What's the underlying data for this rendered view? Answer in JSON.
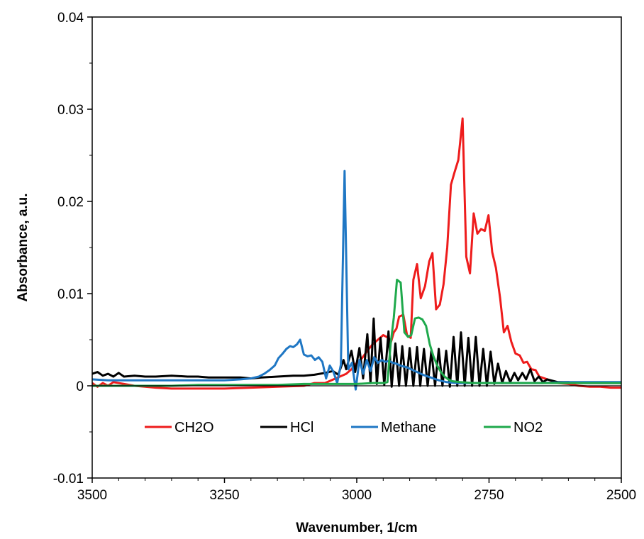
{
  "chart_data": {
    "type": "line",
    "title": "",
    "xlabel": "Wavenumber, 1/cm",
    "ylabel": "Absorbance, a.u.",
    "xlim": [
      3500,
      2500
    ],
    "ylim": [
      -0.01,
      0.04
    ],
    "x_reversed": true,
    "grid": false,
    "legend_position": "inside-lower-center",
    "x_ticks": [
      3500,
      3250,
      3000,
      2750,
      2500
    ],
    "x_tick_labels": [
      "3500",
      "3250",
      "3000",
      "2750",
      "2500"
    ],
    "y_ticks": [
      -0.01,
      0,
      0.01,
      0.02,
      0.03,
      0.04
    ],
    "y_tick_labels": [
      "-0.01",
      "0",
      "0.01",
      "0.02",
      "0.03",
      "0.04"
    ],
    "series": [
      {
        "name": "CH2O",
        "color": "#ee1c1c",
        "points": [
          [
            3500,
            0.0003
          ],
          [
            3490,
            -0.0001
          ],
          [
            3480,
            0.0003
          ],
          [
            3470,
            0.0
          ],
          [
            3460,
            0.0004
          ],
          [
            3440,
            0.0002
          ],
          [
            3420,
            0.0
          ],
          [
            3400,
            -0.0001
          ],
          [
            3380,
            -0.0002
          ],
          [
            3350,
            -0.0003
          ],
          [
            3320,
            -0.0003
          ],
          [
            3300,
            -0.0003
          ],
          [
            3250,
            -0.0003
          ],
          [
            3200,
            -0.0002
          ],
          [
            3150,
            -0.0001
          ],
          [
            3100,
            0.0
          ],
          [
            3080,
            0.0003
          ],
          [
            3060,
            0.0003
          ],
          [
            3040,
            0.0008
          ],
          [
            3020,
            0.0013
          ],
          [
            3010,
            0.0018
          ],
          [
            3000,
            0.0025
          ],
          [
            2990,
            0.003
          ],
          [
            2980,
            0.0038
          ],
          [
            2970,
            0.0045
          ],
          [
            2960,
            0.005
          ],
          [
            2950,
            0.0055
          ],
          [
            2940,
            0.0052
          ],
          [
            2935,
            0.0048
          ],
          [
            2930,
            0.0058
          ],
          [
            2925,
            0.0062
          ],
          [
            2920,
            0.0075
          ],
          [
            2912,
            0.0077
          ],
          [
            2905,
            0.0055
          ],
          [
            2898,
            0.0052
          ],
          [
            2893,
            0.0115
          ],
          [
            2886,
            0.0132
          ],
          [
            2879,
            0.0095
          ],
          [
            2871,
            0.0108
          ],
          [
            2863,
            0.0135
          ],
          [
            2857,
            0.0144
          ],
          [
            2850,
            0.0083
          ],
          [
            2843,
            0.0088
          ],
          [
            2836,
            0.011
          ],
          [
            2829,
            0.015
          ],
          [
            2822,
            0.0218
          ],
          [
            2815,
            0.0232
          ],
          [
            2808,
            0.0245
          ],
          [
            2800,
            0.029
          ],
          [
            2793,
            0.014
          ],
          [
            2786,
            0.0122
          ],
          [
            2779,
            0.0187
          ],
          [
            2772,
            0.0165
          ],
          [
            2765,
            0.017
          ],
          [
            2758,
            0.0168
          ],
          [
            2751,
            0.0185
          ],
          [
            2744,
            0.0145
          ],
          [
            2737,
            0.0128
          ],
          [
            2729,
            0.0095
          ],
          [
            2722,
            0.0058
          ],
          [
            2715,
            0.0065
          ],
          [
            2708,
            0.0048
          ],
          [
            2700,
            0.0035
          ],
          [
            2692,
            0.0033
          ],
          [
            2685,
            0.0025
          ],
          [
            2678,
            0.0026
          ],
          [
            2670,
            0.0018
          ],
          [
            2662,
            0.0017
          ],
          [
            2655,
            0.001
          ],
          [
            2645,
            0.0008
          ],
          [
            2635,
            0.0006
          ],
          [
            2620,
            0.0003
          ],
          [
            2600,
            0.0002
          ],
          [
            2580,
            0.0
          ],
          [
            2560,
            -0.0001
          ],
          [
            2540,
            -0.0001
          ],
          [
            2520,
            -0.0002
          ],
          [
            2500,
            -0.0002
          ]
        ]
      },
      {
        "name": "HCl",
        "color": "#000000",
        "points": [
          [
            3500,
            0.0013
          ],
          [
            3490,
            0.0015
          ],
          [
            3480,
            0.0011
          ],
          [
            3470,
            0.0013
          ],
          [
            3460,
            0.001
          ],
          [
            3450,
            0.0014
          ],
          [
            3440,
            0.001
          ],
          [
            3420,
            0.0011
          ],
          [
            3400,
            0.001
          ],
          [
            3380,
            0.001
          ],
          [
            3350,
            0.0011
          ],
          [
            3320,
            0.001
          ],
          [
            3300,
            0.001
          ],
          [
            3280,
            0.0009
          ],
          [
            3250,
            0.0009
          ],
          [
            3220,
            0.0009
          ],
          [
            3200,
            0.0008
          ],
          [
            3180,
            0.0009
          ],
          [
            3150,
            0.001
          ],
          [
            3120,
            0.0011
          ],
          [
            3100,
            0.0011
          ],
          [
            3080,
            0.0012
          ],
          [
            3060,
            0.0014
          ],
          [
            3045,
            0.0016
          ],
          [
            3035,
            0.0012
          ],
          [
            3025,
            0.0028
          ],
          [
            3020,
            0.0018
          ],
          [
            3010,
            0.0038
          ],
          [
            3003,
            0.0015
          ],
          [
            2995,
            0.0041
          ],
          [
            2988,
            0.0008
          ],
          [
            2980,
            0.0056
          ],
          [
            2974,
            0.0003
          ],
          [
            2968,
            0.0073
          ],
          [
            2962,
            0.0002
          ],
          [
            2955,
            0.0052
          ],
          [
            2948,
            0.0001
          ],
          [
            2940,
            0.0059
          ],
          [
            2934,
            -0.0001
          ],
          [
            2927,
            0.0046
          ],
          [
            2920,
            0.0
          ],
          [
            2914,
            0.0043
          ],
          [
            2907,
            0.0
          ],
          [
            2900,
            0.0041
          ],
          [
            2893,
            0.0
          ],
          [
            2886,
            0.0042
          ],
          [
            2880,
            0.0
          ],
          [
            2873,
            0.004
          ],
          [
            2866,
            0.0
          ],
          [
            2859,
            0.0038
          ],
          [
            2852,
            0.0
          ],
          [
            2845,
            0.004
          ],
          [
            2838,
            0.0
          ],
          [
            2831,
            0.0038
          ],
          [
            2824,
            -0.0001
          ],
          [
            2817,
            0.0053
          ],
          [
            2810,
            0.0
          ],
          [
            2803,
            0.0058
          ],
          [
            2796,
            0.0
          ],
          [
            2789,
            0.0052
          ],
          [
            2782,
            0.0
          ],
          [
            2775,
            0.0053
          ],
          [
            2768,
            0.0
          ],
          [
            2761,
            0.004
          ],
          [
            2754,
            0.0
          ],
          [
            2747,
            0.0037
          ],
          [
            2740,
            0.0002
          ],
          [
            2733,
            0.0024
          ],
          [
            2725,
            0.0003
          ],
          [
            2718,
            0.0016
          ],
          [
            2710,
            0.0004
          ],
          [
            2702,
            0.0014
          ],
          [
            2695,
            0.0006
          ],
          [
            2687,
            0.0014
          ],
          [
            2680,
            0.0007
          ],
          [
            2672,
            0.0018
          ],
          [
            2664,
            0.0005
          ],
          [
            2656,
            0.001
          ],
          [
            2648,
            0.0004
          ],
          [
            2640,
            0.0007
          ],
          [
            2620,
            0.0004
          ],
          [
            2600,
            0.0004
          ],
          [
            2580,
            0.0003
          ],
          [
            2560,
            0.0003
          ],
          [
            2540,
            0.0003
          ],
          [
            2520,
            0.0003
          ],
          [
            2500,
            0.0003
          ]
        ]
      },
      {
        "name": "Methane",
        "color": "#1f77c4",
        "points": [
          [
            3500,
            0.0007
          ],
          [
            3470,
            0.0006
          ],
          [
            3440,
            0.0006
          ],
          [
            3400,
            0.0006
          ],
          [
            3350,
            0.0006
          ],
          [
            3300,
            0.0006
          ],
          [
            3250,
            0.0006
          ],
          [
            3220,
            0.0007
          ],
          [
            3200,
            0.0008
          ],
          [
            3185,
            0.001
          ],
          [
            3175,
            0.0013
          ],
          [
            3165,
            0.0017
          ],
          [
            3155,
            0.0022
          ],
          [
            3148,
            0.003
          ],
          [
            3140,
            0.0035
          ],
          [
            3133,
            0.004
          ],
          [
            3126,
            0.0043
          ],
          [
            3120,
            0.0042
          ],
          [
            3113,
            0.0045
          ],
          [
            3107,
            0.005
          ],
          [
            3100,
            0.0034
          ],
          [
            3093,
            0.0032
          ],
          [
            3086,
            0.0033
          ],
          [
            3079,
            0.0028
          ],
          [
            3072,
            0.0031
          ],
          [
            3065,
            0.0026
          ],
          [
            3058,
            0.0008
          ],
          [
            3051,
            0.0022
          ],
          [
            3044,
            0.0015
          ],
          [
            3037,
            0.0003
          ],
          [
            3030,
            0.0023
          ],
          [
            3023,
            0.0233
          ],
          [
            3016,
            0.0018
          ],
          [
            3009,
            0.0025
          ],
          [
            3002,
            -0.0004
          ],
          [
            2995,
            0.0028
          ],
          [
            2988,
            0.0013
          ],
          [
            2981,
            0.0028
          ],
          [
            2974,
            0.0016
          ],
          [
            2967,
            0.0031
          ],
          [
            2960,
            0.0025
          ],
          [
            2953,
            0.0028
          ],
          [
            2946,
            0.0026
          ],
          [
            2939,
            0.0027
          ],
          [
            2932,
            0.0025
          ],
          [
            2925,
            0.0024
          ],
          [
            2918,
            0.0022
          ],
          [
            2905,
            0.002
          ],
          [
            2890,
            0.0016
          ],
          [
            2875,
            0.0012
          ],
          [
            2860,
            0.0009
          ],
          [
            2845,
            0.0006
          ],
          [
            2830,
            0.0004
          ],
          [
            2810,
            0.0003
          ],
          [
            2780,
            0.0003
          ],
          [
            2750,
            0.0003
          ],
          [
            2700,
            0.0003
          ],
          [
            2650,
            0.0003
          ],
          [
            2600,
            0.0004
          ],
          [
            2550,
            0.0004
          ],
          [
            2500,
            0.0004
          ]
        ]
      },
      {
        "name": "NO2",
        "color": "#1fa94c",
        "points": [
          [
            3500,
            0.0
          ],
          [
            3450,
            0.0
          ],
          [
            3400,
            0.0
          ],
          [
            3350,
            0.0
          ],
          [
            3300,
            0.0001
          ],
          [
            3250,
            0.0001
          ],
          [
            3200,
            0.0001
          ],
          [
            3150,
            0.0001
          ],
          [
            3100,
            0.0002
          ],
          [
            3050,
            0.0002
          ],
          [
            3000,
            0.0002
          ],
          [
            2970,
            0.0003
          ],
          [
            2950,
            0.0003
          ],
          [
            2942,
            0.0004
          ],
          [
            2936,
            0.0045
          ],
          [
            2930,
            0.0074
          ],
          [
            2924,
            0.0115
          ],
          [
            2917,
            0.0112
          ],
          [
            2910,
            0.0058
          ],
          [
            2903,
            0.0053
          ],
          [
            2897,
            0.0055
          ],
          [
            2890,
            0.0073
          ],
          [
            2883,
            0.0074
          ],
          [
            2876,
            0.0072
          ],
          [
            2869,
            0.0065
          ],
          [
            2862,
            0.0045
          ],
          [
            2855,
            0.0032
          ],
          [
            2848,
            0.0022
          ],
          [
            2841,
            0.0015
          ],
          [
            2834,
            0.001
          ],
          [
            2827,
            0.0007
          ],
          [
            2820,
            0.0005
          ],
          [
            2805,
            0.0004
          ],
          [
            2780,
            0.0003
          ],
          [
            2750,
            0.0003
          ],
          [
            2700,
            0.0003
          ],
          [
            2650,
            0.0003
          ],
          [
            2600,
            0.0003
          ],
          [
            2550,
            0.0003
          ],
          [
            2500,
            0.0003
          ]
        ]
      }
    ]
  }
}
